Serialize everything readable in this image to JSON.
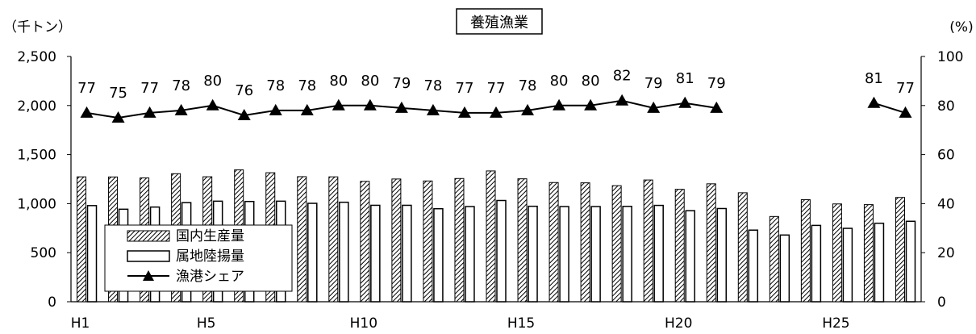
{
  "chart_data": {
    "type": "bar",
    "title": "養殖漁業",
    "ylabel_left": "（千トン）",
    "ylabel_right": "(%)",
    "ylim_left": [
      0,
      2500
    ],
    "ylim_right": [
      0,
      100
    ],
    "yticks_left": [
      "0",
      "500",
      "1,000",
      "1,500",
      "2,000",
      "2,500"
    ],
    "yticks_right": [
      "0",
      "20",
      "40",
      "60",
      "80",
      "100"
    ],
    "categories": [
      "H1",
      "H2",
      "H3",
      "H4",
      "H5",
      "H6",
      "H7",
      "H8",
      "H9",
      "H10",
      "H11",
      "H12",
      "H13",
      "H14",
      "H15",
      "H16",
      "H17",
      "H18",
      "H19",
      "H20",
      "H21",
      "H22",
      "H23",
      "H24",
      "H25",
      "H26",
      "H27"
    ],
    "xtick_labels": [
      "H1",
      "",
      "",
      "",
      "H5",
      "",
      "",
      "",
      "",
      "H10",
      "",
      "",
      "",
      "",
      "H15",
      "",
      "",
      "",
      "",
      "H20",
      "",
      "",
      "",
      "",
      "H25",
      "",
      ""
    ],
    "series": [
      {
        "name": "国内生産量",
        "kind": "bar",
        "pattern": "hatch",
        "values": [
          1273,
          1272,
          1262,
          1305,
          1274,
          1344,
          1315,
          1275,
          1273,
          1227,
          1251,
          1231,
          1256,
          1333,
          1253,
          1215,
          1212,
          1183,
          1241,
          1146,
          1202,
          1111,
          869,
          1040,
          997,
          990,
          1063
        ]
      },
      {
        "name": "属地陸揚量",
        "kind": "bar",
        "pattern": "white",
        "values": [
          980,
          943,
          965,
          1010,
          1025,
          1022,
          1025,
          1003,
          1014,
          983,
          983,
          948,
          970,
          1032,
          973,
          970,
          970,
          972,
          982,
          928,
          950,
          730,
          680,
          778,
          748,
          800,
          820
        ]
      },
      {
        "name": "漁港シェア",
        "kind": "line",
        "marker": "triangle",
        "axis": "right",
        "values": [
          77,
          75,
          77,
          78,
          80,
          76,
          78,
          78,
          80,
          80,
          79,
          78,
          77,
          77,
          78,
          80,
          80,
          82,
          79,
          81,
          79,
          null,
          null,
          null,
          null,
          81,
          77
        ]
      }
    ],
    "data_labels": [
      "77",
      "75",
      "77",
      "78",
      "80",
      "76",
      "78",
      "78",
      "80",
      "80",
      "79",
      "78",
      "77",
      "77",
      "78",
      "80",
      "80",
      "82",
      "79",
      "81",
      "79",
      "",
      "",
      "",
      "",
      "81",
      "77"
    ],
    "legend_position": "lower-left",
    "grid": false
  }
}
